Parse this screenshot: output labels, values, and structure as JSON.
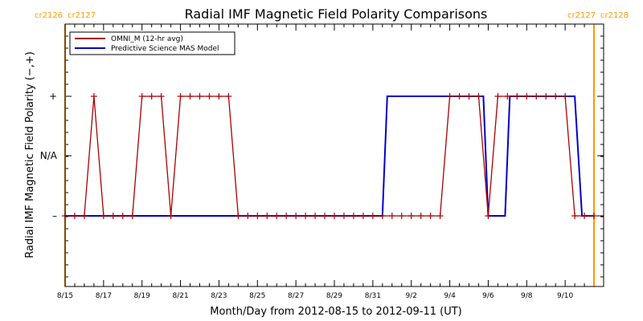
{
  "chart_data": {
    "type": "line",
    "title": "Radial IMF Magnetic Field Polarity Comparisons",
    "xlabel": "Month/Day from 2012-08-15 to 2012-09-11 (UT)",
    "ylabel": "Radial IMF Magnetic Field Polarity (−,+)",
    "xlim": [
      "2012-08-15 00:00",
      "2012-09-12 00:00"
    ],
    "x_ticks": [
      "8/15",
      "8/17",
      "8/19",
      "8/21",
      "8/23",
      "8/25",
      "8/27",
      "8/29",
      "8/31",
      "9/2",
      "9/4",
      "9/6",
      "9/8",
      "9/10"
    ],
    "y_categories": [
      "−",
      "N/A",
      "+"
    ],
    "y_ticks": [
      "+",
      "N/A",
      "–"
    ],
    "carrington_markers": [
      {
        "left": "cr2126",
        "right": "cr2127",
        "date": "2012-08-15 00:00",
        "color": "#ff9900"
      },
      {
        "left": "cr2127",
        "right": "cr2128",
        "date": "2012-09-11 12:00",
        "color": "#ff9900"
      }
    ],
    "legend": {
      "position": "top-left"
    },
    "series": [
      {
        "name": "OMNI_M (12-hr avg)",
        "color": "#aa0000",
        "markers": true,
        "x": [
          "2012-08-15 00:00",
          "2012-08-15 12:00",
          "2012-08-16 00:00",
          "2012-08-16 12:00",
          "2012-08-17 00:00",
          "2012-08-17 12:00",
          "2012-08-18 00:00",
          "2012-08-18 12:00",
          "2012-08-19 00:00",
          "2012-08-19 12:00",
          "2012-08-20 00:00",
          "2012-08-20 12:00",
          "2012-08-21 00:00",
          "2012-08-21 12:00",
          "2012-08-22 00:00",
          "2012-08-22 12:00",
          "2012-08-23 00:00",
          "2012-08-23 12:00",
          "2012-08-24 00:00",
          "2012-08-24 12:00",
          "2012-08-25 00:00",
          "2012-08-25 12:00",
          "2012-08-26 00:00",
          "2012-08-26 12:00",
          "2012-08-27 00:00",
          "2012-08-27 12:00",
          "2012-08-28 00:00",
          "2012-08-28 12:00",
          "2012-08-29 00:00",
          "2012-08-29 12:00",
          "2012-08-30 00:00",
          "2012-08-30 12:00",
          "2012-08-31 00:00",
          "2012-08-31 12:00",
          "2012-09-01 00:00",
          "2012-09-01 12:00",
          "2012-09-02 00:00",
          "2012-09-02 12:00",
          "2012-09-03 00:00",
          "2012-09-03 12:00",
          "2012-09-04 00:00",
          "2012-09-04 12:00",
          "2012-09-05 00:00",
          "2012-09-05 12:00",
          "2012-09-06 00:00",
          "2012-09-06 12:00",
          "2012-09-07 00:00",
          "2012-09-07 12:00",
          "2012-09-08 00:00",
          "2012-09-08 12:00",
          "2012-09-09 00:00",
          "2012-09-09 12:00",
          "2012-09-10 00:00",
          "2012-09-10 12:00",
          "2012-09-11 00:00",
          "2012-09-11 12:00"
        ],
        "y": [
          "−",
          "−",
          "−",
          "+",
          "−",
          "−",
          "−",
          "−",
          "+",
          "+",
          "+",
          "−",
          "+",
          "+",
          "+",
          "+",
          "+",
          "+",
          "−",
          "−",
          "−",
          "−",
          "−",
          "−",
          "−",
          "−",
          "−",
          "−",
          "−",
          "−",
          "−",
          "−",
          "−",
          "−",
          "−",
          "−",
          "−",
          "−",
          "−",
          "−",
          "+",
          "+",
          "+",
          "+",
          "−",
          "+",
          "+",
          "+",
          "+",
          "+",
          "+",
          "+",
          "+",
          "−",
          "−",
          "−"
        ]
      },
      {
        "name": "Predictive Science MAS Model",
        "color": "#0000cc",
        "markers": false,
        "x": [
          "2012-08-15 00:00",
          "2012-08-31 12:00",
          "2012-08-31 18:00",
          "2012-09-05 18:00",
          "2012-09-06 00:00",
          "2012-09-06 21:00",
          "2012-09-07 03:00",
          "2012-09-10 12:00",
          "2012-09-10 21:00",
          "2012-09-11 12:00"
        ],
        "y": [
          "−",
          "−",
          "+",
          "+",
          "−",
          "−",
          "+",
          "+",
          "−",
          "−"
        ]
      }
    ]
  }
}
